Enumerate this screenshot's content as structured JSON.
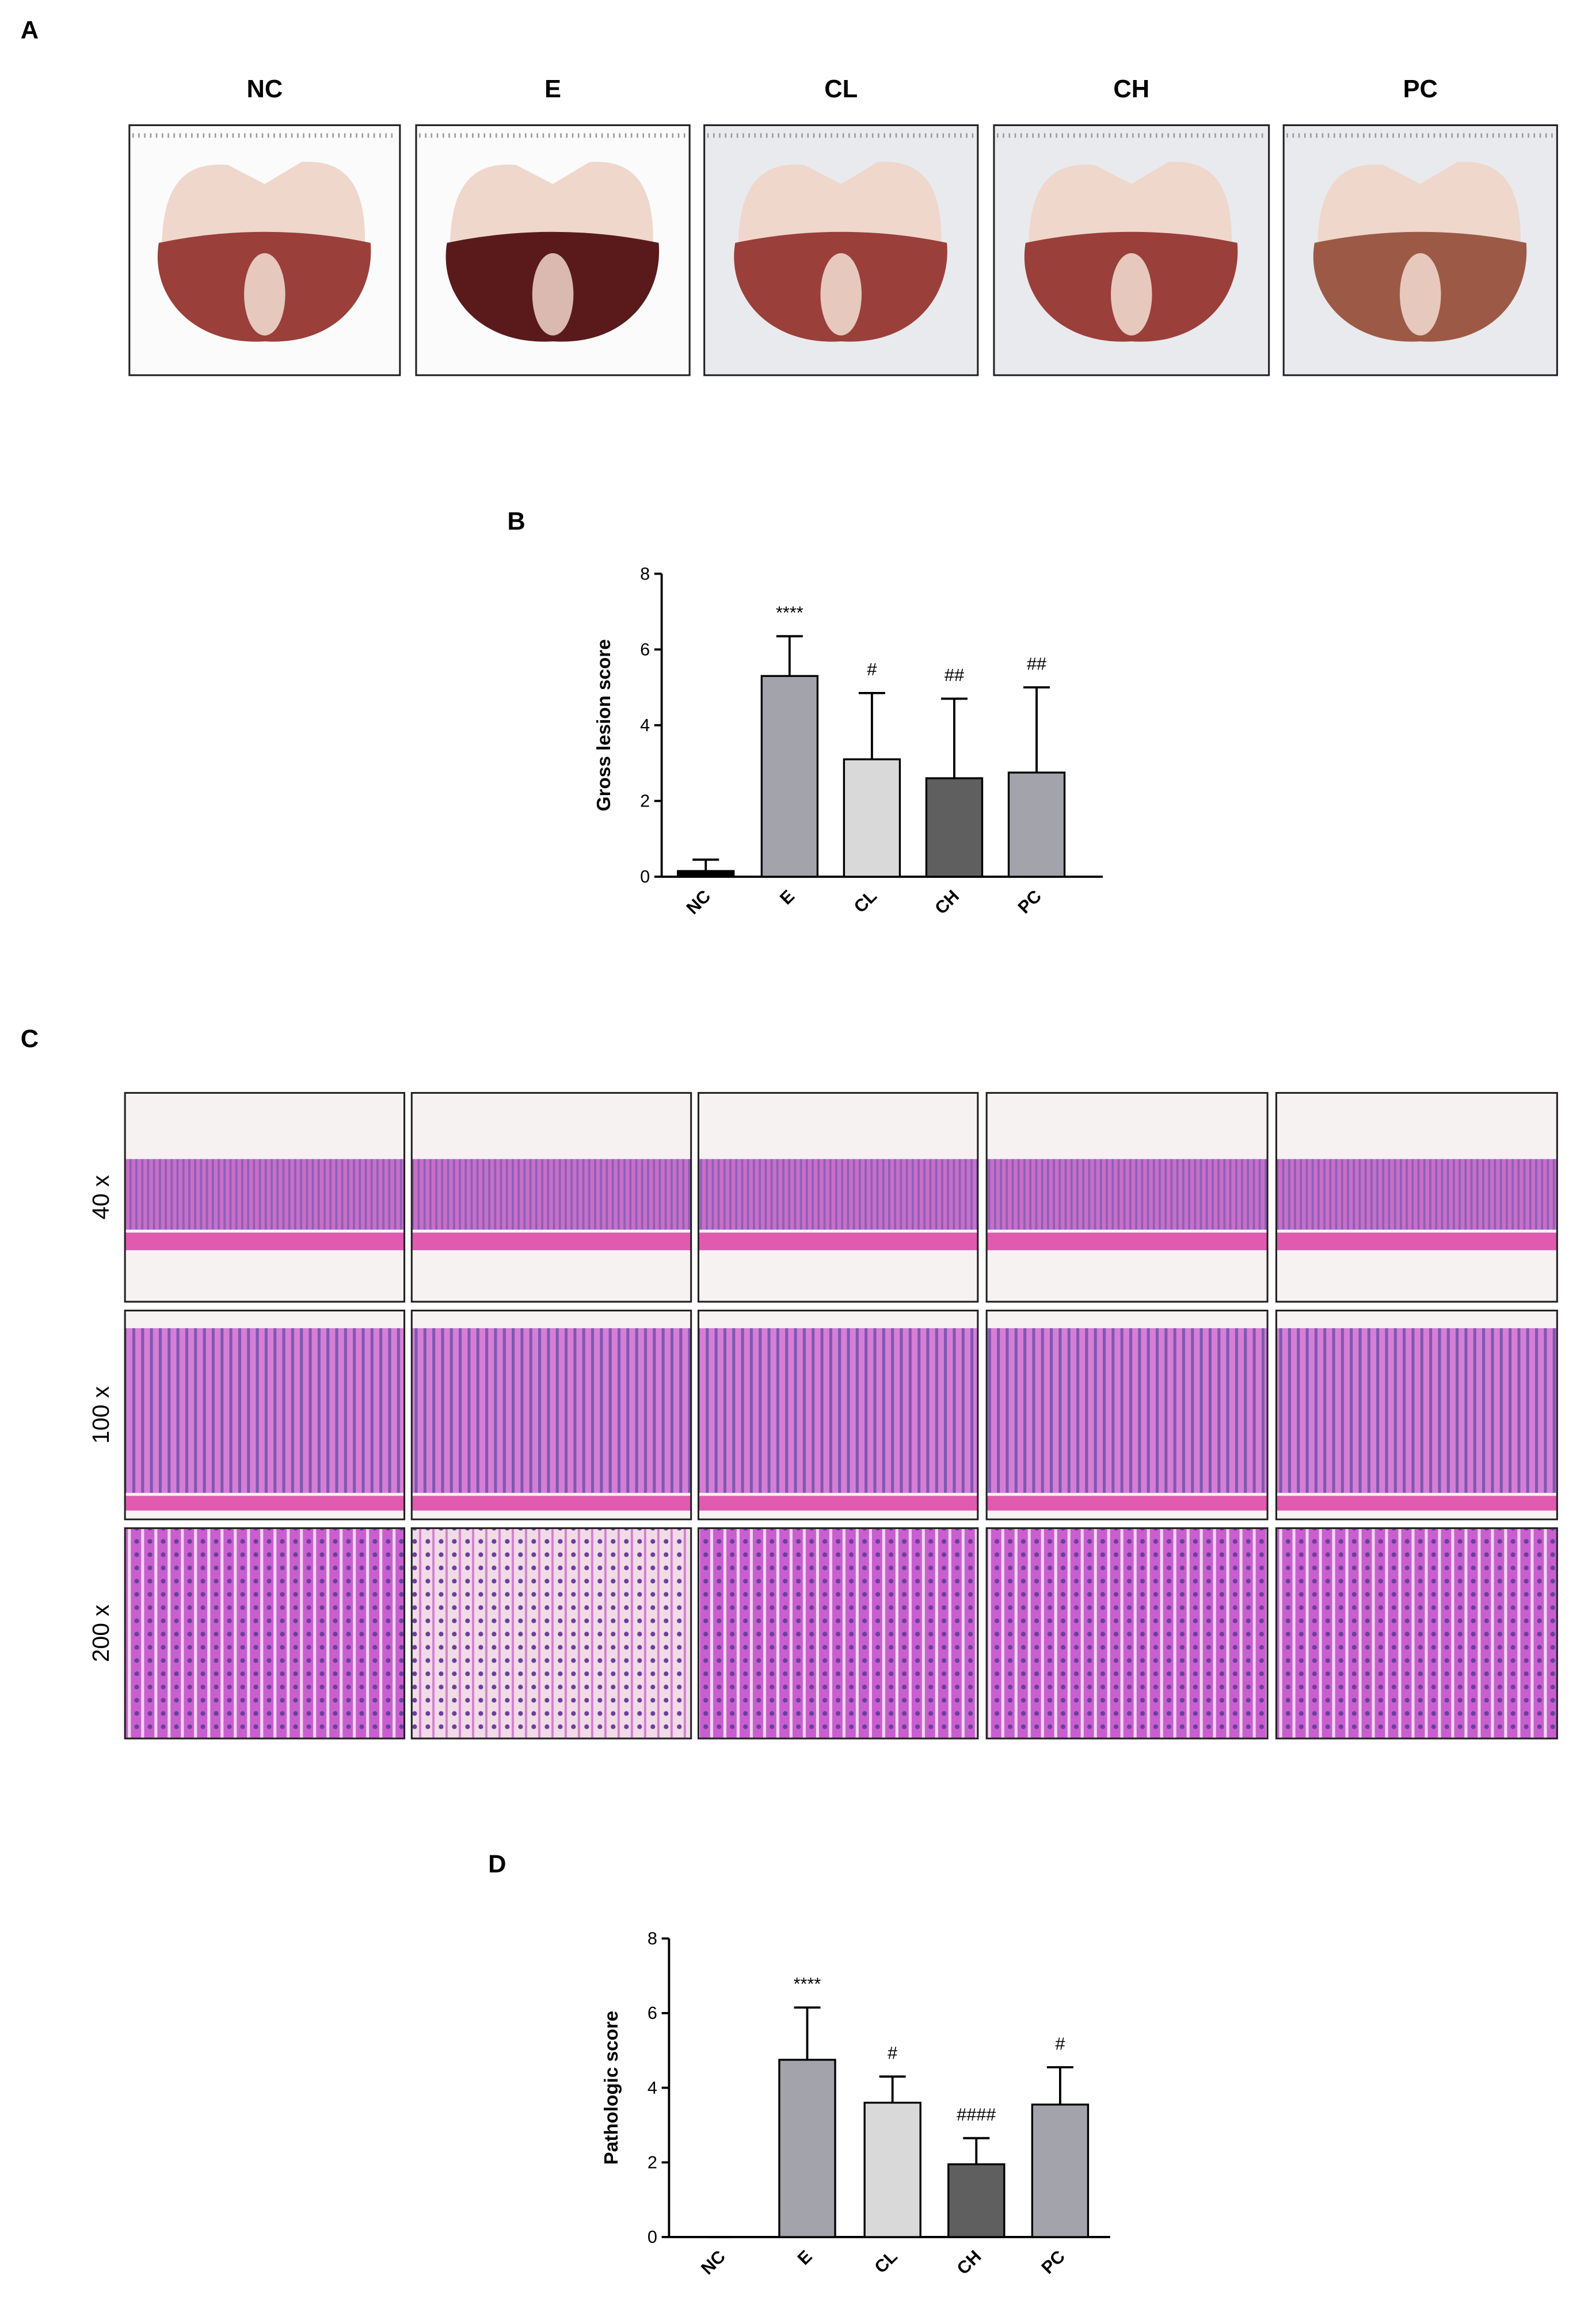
{
  "panels": {
    "a": {
      "label": "A",
      "columns": [
        "NC",
        "E",
        "CL",
        "CH",
        "PC"
      ]
    },
    "c": {
      "label": "C",
      "rows": [
        "40 x",
        "100 x",
        "200 x"
      ]
    }
  },
  "chart_data": [
    {
      "type": "bar",
      "panel_label": "B",
      "ylabel": "Gross lesion score",
      "categories": [
        "NC",
        "E",
        "CL",
        "CH",
        "PC"
      ],
      "values": [
        0.15,
        5.3,
        3.1,
        2.6,
        2.75
      ],
      "errors": [
        0.3,
        1.05,
        1.75,
        2.1,
        2.25
      ],
      "annotations": [
        null,
        "****",
        "#",
        "##",
        "##"
      ],
      "colors": [
        "#000000",
        "#a3a3ab",
        "#d9d9d9",
        "#5f5f5f",
        "#a3a3ab"
      ],
      "ylim": [
        0,
        8
      ],
      "yticks": [
        0,
        2,
        4,
        6,
        8
      ]
    },
    {
      "type": "bar",
      "panel_label": "D",
      "ylabel": "Pathologic score",
      "categories": [
        "NC",
        "E",
        "CL",
        "CH",
        "PC"
      ],
      "values": [
        0,
        4.75,
        3.6,
        1.95,
        3.55
      ],
      "errors": [
        0,
        1.4,
        0.7,
        0.7,
        1.0
      ],
      "annotations": [
        null,
        "****",
        "#",
        "####",
        "#"
      ],
      "colors": [
        "#000000",
        "#a3a3ab",
        "#d9d9d9",
        "#5f5f5f",
        "#a3a3ab"
      ],
      "ylim": [
        0,
        8
      ],
      "yticks": [
        0,
        2,
        4,
        6,
        8
      ]
    }
  ]
}
